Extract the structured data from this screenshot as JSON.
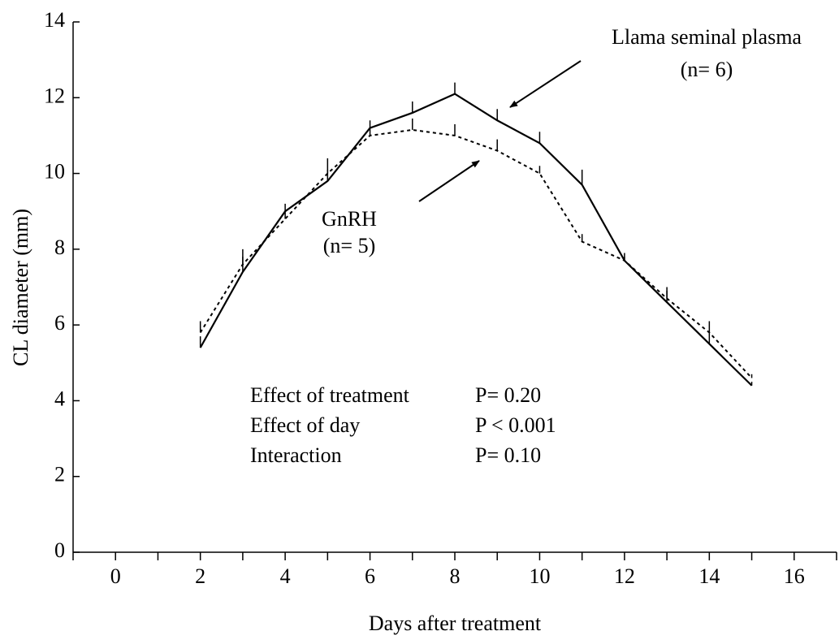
{
  "chart_data": {
    "type": "line",
    "xlabel": "Days after treatment",
    "ylabel": "CL diameter (mm)",
    "x": [
      2,
      3,
      4,
      5,
      6,
      7,
      8,
      9,
      10,
      11,
      12,
      13,
      14,
      15
    ],
    "series": [
      {
        "name": "Llama seminal plasma",
        "n_label": "(n=  6)",
        "color": "#000000",
        "dash": "solid",
        "values": [
          5.4,
          7.4,
          9.0,
          9.8,
          11.2,
          11.6,
          12.1,
          11.4,
          10.8,
          9.7,
          7.7,
          6.6,
          5.5,
          4.4
        ],
        "errors": [
          0.3,
          0.4,
          0.2,
          0.3,
          0.2,
          0.3,
          0.3,
          0.3,
          0.3,
          0.4,
          0.2,
          0.3,
          0.3,
          0.1
        ]
      },
      {
        "name": "GnRH",
        "n_label": "(n= 5)",
        "color": "#000000",
        "dash": "dotted",
        "values": [
          5.8,
          7.6,
          8.8,
          10.0,
          11.0,
          11.15,
          11.0,
          10.6,
          10.0,
          8.2,
          7.7,
          6.7,
          5.8,
          4.6
        ],
        "errors": [
          0.3,
          0.4,
          0.2,
          0.4,
          0.2,
          0.3,
          0.3,
          0.3,
          0.2,
          0.2,
          0.1,
          0.3,
          0.3,
          0.1
        ]
      }
    ],
    "stats": [
      {
        "label": "Effect of treatment",
        "value": "P= 0.20"
      },
      {
        "label": "Effect of day",
        "value": "P < 0.001"
      },
      {
        "label": "Interaction",
        "value": "P= 0.10"
      }
    ],
    "xlim": [
      -1,
      17
    ],
    "xticks": [
      0,
      2,
      4,
      6,
      8,
      10,
      12,
      14,
      16
    ],
    "xminorticks": [
      -1,
      1,
      3,
      5,
      7,
      9,
      11,
      13,
      15,
      17
    ],
    "ylim": [
      0,
      14
    ],
    "yticks": [
      0,
      2,
      4,
      6,
      8,
      10,
      12,
      14
    ]
  }
}
